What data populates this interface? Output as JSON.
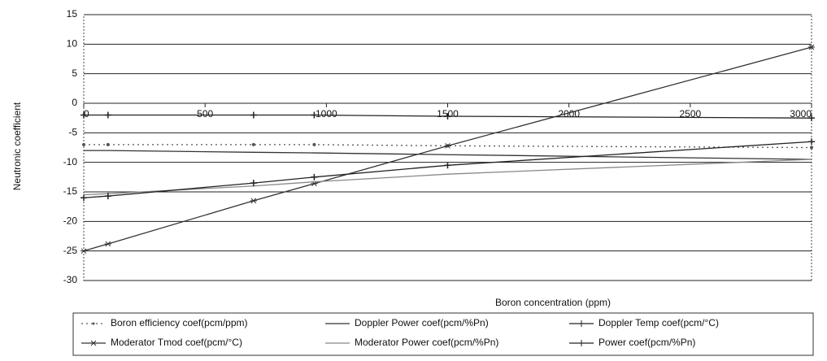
{
  "chart_data": {
    "type": "line",
    "x_label": "Boron concentration (ppm)",
    "y_label": "Neutronic coefficient",
    "xlim": [
      0,
      3000
    ],
    "xticks": [
      0,
      500,
      1000,
      1500,
      2000,
      2500,
      3000
    ],
    "ylim": [
      -30,
      15
    ],
    "yticks": [
      -30,
      -25,
      -20,
      -15,
      -10,
      -5,
      0,
      5,
      10,
      15
    ],
    "grid": true,
    "legend": "bottom",
    "x": [
      0,
      100,
      700,
      950,
      1500,
      3000
    ],
    "series": [
      {
        "name": "Boron efficiency coef(pcm/ppm)",
        "color": "#555555",
        "marker": "dot",
        "line": "dotted",
        "values": [
          -7,
          -7,
          -7,
          -7,
          -7.2,
          -7.5
        ]
      },
      {
        "name": "Doppler Power coef(pcm/%Pn)",
        "color": "#333333",
        "marker": "none",
        "line": "solid",
        "values": [
          -8,
          -8,
          -8.3,
          -8.4,
          -8.7,
          -9.5
        ]
      },
      {
        "name": "Doppler Temp coef(pcm/°C)",
        "color": "#222222",
        "marker": "plus",
        "line": "solid",
        "values": [
          -2,
          -2,
          -2,
          -2,
          -2.2,
          -2.5
        ]
      },
      {
        "name": "Moderator Tmod coef(pcm/°C)",
        "color": "#333333",
        "marker": "star",
        "line": "solid",
        "values": [
          -25,
          -23.8,
          -16.5,
          -13.6,
          -7.2,
          9.5
        ]
      },
      {
        "name": "Moderator Power coef(pcm/%Pn)",
        "color": "#888888",
        "marker": "none",
        "line": "solid",
        "values": [
          -15.5,
          -15.3,
          -14,
          -13.3,
          -12,
          -9.5
        ]
      },
      {
        "name": "Power coef(pcm/%Pn)",
        "color": "#222222",
        "marker": "plus",
        "line": "solid",
        "values": [
          -16,
          -15.7,
          -13.5,
          -12.5,
          -10.5,
          -6.5
        ]
      }
    ]
  }
}
